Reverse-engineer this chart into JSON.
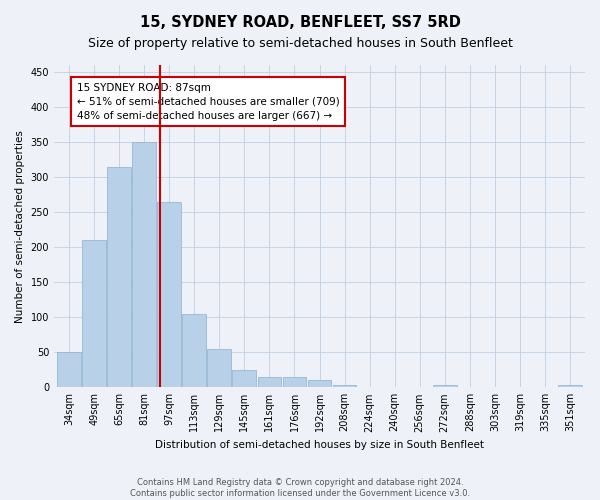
{
  "title": "15, SYDNEY ROAD, BENFLEET, SS7 5RD",
  "subtitle": "Size of property relative to semi-detached houses in South Benfleet",
  "xlabel": "Distribution of semi-detached houses by size in South Benfleet",
  "ylabel": "Number of semi-detached properties",
  "categories": [
    "34sqm",
    "49sqm",
    "65sqm",
    "81sqm",
    "97sqm",
    "113sqm",
    "129sqm",
    "145sqm",
    "161sqm",
    "176sqm",
    "192sqm",
    "208sqm",
    "224sqm",
    "240sqm",
    "256sqm",
    "272sqm",
    "288sqm",
    "303sqm",
    "319sqm",
    "335sqm",
    "351sqm"
  ],
  "values": [
    50,
    210,
    315,
    350,
    265,
    105,
    55,
    25,
    15,
    15,
    10,
    3,
    1,
    0,
    0,
    4,
    0,
    0,
    0,
    0,
    3
  ],
  "bar_color": "#b8d0e8",
  "bar_edge_color": "#8ab0d0",
  "property_line_x": 3.62,
  "annotation_text": "15 SYDNEY ROAD: 87sqm\n← 51% of semi-detached houses are smaller (709)\n48% of semi-detached houses are larger (667) →",
  "annotation_box_color": "#ffffff",
  "annotation_box_edge_color": "#cc0000",
  "line_color": "#cc0000",
  "ylim": [
    0,
    460
  ],
  "yticks": [
    0,
    50,
    100,
    150,
    200,
    250,
    300,
    350,
    400,
    450
  ],
  "background_color": "#eef2f8",
  "footer_text": "Contains HM Land Registry data © Crown copyright and database right 2024.\nContains public sector information licensed under the Government Licence v3.0.",
  "title_fontsize": 10.5,
  "subtitle_fontsize": 9,
  "axis_label_fontsize": 7.5,
  "tick_fontsize": 7,
  "annotation_fontsize": 7.5,
  "footer_fontsize": 6
}
